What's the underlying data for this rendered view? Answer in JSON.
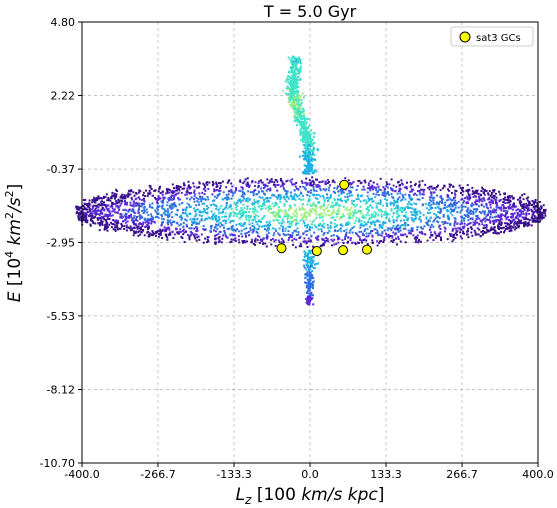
{
  "chart_data": {
    "type": "scatter",
    "title": "T = 5.0 Gyr",
    "xlabel": "L_z [100 km/s kpc]",
    "ylabel": "E [10^4 km^2/s^2]",
    "xlim": [
      -400.0,
      400.0
    ],
    "ylim": [
      -10.7,
      4.8
    ],
    "x_ticks": [
      "-400.0",
      "-266.7",
      "-133.3",
      "0.0",
      "133.3",
      "266.7",
      "400.0"
    ],
    "y_ticks": [
      "4.80",
      "2.22",
      "-0.37",
      "-2.95",
      "-5.53",
      "-8.12",
      "-10.70"
    ],
    "grid": true,
    "legend_position": "top-right",
    "density_colormap": [
      "#3b0f8c",
      "#5a2ad6",
      "#2f6fe0",
      "#1fb1e6",
      "#3ee3c8",
      "#9cf07a"
    ],
    "series": [
      {
        "name": "sat3 GCs",
        "marker_color": "#ffff00",
        "edge_color": "#000000",
        "points": [
          {
            "x": 60,
            "y": -0.92
          },
          {
            "x": -50,
            "y": -3.15
          },
          {
            "x": 12,
            "y": -3.25
          },
          {
            "x": 58,
            "y": -3.22
          },
          {
            "x": 100,
            "y": -3.2
          }
        ]
      }
    ]
  }
}
